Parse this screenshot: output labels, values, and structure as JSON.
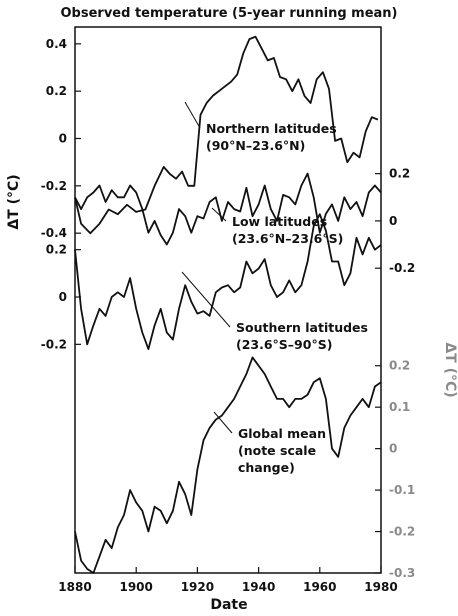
{
  "chart_data": {
    "type": "line",
    "title": "Observed temperature (5-year running mean)",
    "xlabel": "Date",
    "ylabel_left": "ΔT (°C)",
    "ylabel_right_gray": "ΔT (°C)",
    "xlim": [
      1880,
      1980
    ],
    "x_ticks": [
      "1880",
      "1900",
      "1920",
      "1940",
      "1960",
      "1980"
    ],
    "legend": "none (direct annotations)",
    "grid": false,
    "series": [
      {
        "name": "Northern latitudes",
        "axis": "left-upper",
        "color": "#111111",
        "y_ticks": [
          "0.4",
          "0.2",
          "0",
          "-0.2",
          "-0.4"
        ],
        "ylim": [
          -0.45,
          0.45
        ],
        "points": [
          [
            1880,
            -0.25
          ],
          [
            1882,
            -0.36
          ],
          [
            1885,
            -0.4
          ],
          [
            1888,
            -0.36
          ],
          [
            1891,
            -0.3
          ],
          [
            1894,
            -0.32
          ],
          [
            1897,
            -0.28
          ],
          [
            1900,
            -0.31
          ],
          [
            1903,
            -0.3
          ],
          [
            1906,
            -0.2
          ],
          [
            1909,
            -0.12
          ],
          [
            1911,
            -0.15
          ],
          [
            1913,
            -0.17
          ],
          [
            1915,
            -0.14
          ],
          [
            1917,
            -0.2
          ],
          [
            1919,
            -0.2
          ],
          [
            1921,
            0.1
          ],
          [
            1923,
            0.15
          ],
          [
            1925,
            0.18
          ],
          [
            1927,
            0.2
          ],
          [
            1929,
            0.22
          ],
          [
            1931,
            0.24
          ],
          [
            1933,
            0.27
          ],
          [
            1935,
            0.36
          ],
          [
            1937,
            0.42
          ],
          [
            1939,
            0.43
          ],
          [
            1941,
            0.38
          ],
          [
            1943,
            0.33
          ],
          [
            1945,
            0.34
          ],
          [
            1947,
            0.26
          ],
          [
            1949,
            0.25
          ],
          [
            1951,
            0.2
          ],
          [
            1953,
            0.25
          ],
          [
            1955,
            0.18
          ],
          [
            1957,
            0.15
          ],
          [
            1959,
            0.25
          ],
          [
            1961,
            0.28
          ],
          [
            1963,
            0.21
          ],
          [
            1965,
            -0.01
          ],
          [
            1967,
            0.0
          ],
          [
            1969,
            -0.1
          ],
          [
            1971,
            -0.06
          ],
          [
            1973,
            -0.08
          ],
          [
            1975,
            0.03
          ],
          [
            1977,
            0.09
          ],
          [
            1979,
            0.08
          ]
        ],
        "annotation": [
          "Northern latitudes",
          "(90°N–23.6°N)"
        ]
      },
      {
        "name": "Low latitudes",
        "axis": "right-upper",
        "color": "#111111",
        "y_ticks": [
          "0.2",
          "0",
          "-0.2"
        ],
        "ylim": [
          -0.25,
          0.3
        ],
        "points": [
          [
            1880,
            0.1
          ],
          [
            1882,
            0.05
          ],
          [
            1884,
            0.1
          ],
          [
            1886,
            0.12
          ],
          [
            1888,
            0.15
          ],
          [
            1890,
            0.08
          ],
          [
            1892,
            0.13
          ],
          [
            1894,
            0.1
          ],
          [
            1896,
            0.1
          ],
          [
            1898,
            0.15
          ],
          [
            1900,
            0.12
          ],
          [
            1902,
            0.05
          ],
          [
            1904,
            -0.05
          ],
          [
            1906,
            0.0
          ],
          [
            1908,
            -0.06
          ],
          [
            1910,
            -0.1
          ],
          [
            1912,
            -0.05
          ],
          [
            1914,
            0.05
          ],
          [
            1916,
            0.02
          ],
          [
            1918,
            -0.05
          ],
          [
            1920,
            0.02
          ],
          [
            1922,
            0.01
          ],
          [
            1924,
            0.08
          ],
          [
            1926,
            0.1
          ],
          [
            1928,
            0.0
          ],
          [
            1930,
            0.08
          ],
          [
            1932,
            0.05
          ],
          [
            1934,
            0.04
          ],
          [
            1936,
            0.14
          ],
          [
            1938,
            0.02
          ],
          [
            1940,
            0.07
          ],
          [
            1942,
            0.15
          ],
          [
            1944,
            0.05
          ],
          [
            1946,
            0.0
          ],
          [
            1948,
            0.11
          ],
          [
            1950,
            0.1
          ],
          [
            1952,
            0.07
          ],
          [
            1954,
            0.15
          ],
          [
            1956,
            0.2
          ],
          [
            1958,
            0.1
          ],
          [
            1960,
            -0.05
          ],
          [
            1962,
            0.03
          ],
          [
            1964,
            0.07
          ],
          [
            1966,
            0.0
          ],
          [
            1968,
            0.1
          ],
          [
            1970,
            0.05
          ],
          [
            1972,
            0.08
          ],
          [
            1974,
            0.02
          ],
          [
            1976,
            0.12
          ],
          [
            1978,
            0.15
          ],
          [
            1980,
            0.12
          ]
        ],
        "annotation": [
          "Low latitudes",
          "(23.6°N–23.6°S)"
        ]
      },
      {
        "name": "Southern latitudes",
        "axis": "left-middle",
        "color": "#111111",
        "y_ticks": [
          "0.2",
          "0",
          "-0.2"
        ],
        "ylim": [
          -0.3,
          0.3
        ],
        "points": [
          [
            1880,
            0.2
          ],
          [
            1882,
            -0.05
          ],
          [
            1884,
            -0.2
          ],
          [
            1886,
            -0.12
          ],
          [
            1888,
            -0.05
          ],
          [
            1890,
            -0.08
          ],
          [
            1892,
            0.0
          ],
          [
            1894,
            0.02
          ],
          [
            1896,
            0.0
          ],
          [
            1898,
            0.08
          ],
          [
            1900,
            -0.05
          ],
          [
            1902,
            -0.15
          ],
          [
            1904,
            -0.22
          ],
          [
            1906,
            -0.12
          ],
          [
            1908,
            -0.05
          ],
          [
            1910,
            -0.15
          ],
          [
            1912,
            -0.18
          ],
          [
            1914,
            -0.05
          ],
          [
            1916,
            0.05
          ],
          [
            1918,
            -0.02
          ],
          [
            1920,
            -0.07
          ],
          [
            1922,
            -0.06
          ],
          [
            1924,
            -0.08
          ],
          [
            1926,
            0.02
          ],
          [
            1928,
            0.04
          ],
          [
            1930,
            0.05
          ],
          [
            1932,
            0.02
          ],
          [
            1934,
            0.04
          ],
          [
            1936,
            0.15
          ],
          [
            1938,
            0.1
          ],
          [
            1940,
            0.12
          ],
          [
            1942,
            0.16
          ],
          [
            1944,
            0.05
          ],
          [
            1946,
            0.0
          ],
          [
            1948,
            0.02
          ],
          [
            1950,
            0.07
          ],
          [
            1952,
            0.02
          ],
          [
            1954,
            0.05
          ],
          [
            1956,
            0.15
          ],
          [
            1958,
            0.3
          ],
          [
            1960,
            0.35
          ],
          [
            1962,
            0.28
          ],
          [
            1964,
            0.15
          ],
          [
            1966,
            0.15
          ],
          [
            1968,
            0.05
          ],
          [
            1970,
            0.1
          ],
          [
            1972,
            0.25
          ],
          [
            1974,
            0.18
          ],
          [
            1976,
            0.25
          ],
          [
            1978,
            0.2
          ],
          [
            1980,
            0.22
          ]
        ],
        "annotation": [
          "Southern latitudes",
          "(23.6°S–90°S)"
        ]
      },
      {
        "name": "Global mean",
        "axis": "right-lower",
        "color": "#111111",
        "y_ticks": [
          "0.2",
          "0.1",
          "0",
          "-0.1",
          "-0.2",
          "-0.3"
        ],
        "ylim": [
          -0.3,
          0.25
        ],
        "points": [
          [
            1880,
            -0.2
          ],
          [
            1882,
            -0.27
          ],
          [
            1884,
            -0.29
          ],
          [
            1886,
            -0.3
          ],
          [
            1888,
            -0.26
          ],
          [
            1890,
            -0.22
          ],
          [
            1892,
            -0.24
          ],
          [
            1894,
            -0.19
          ],
          [
            1896,
            -0.16
          ],
          [
            1898,
            -0.1
          ],
          [
            1900,
            -0.13
          ],
          [
            1902,
            -0.15
          ],
          [
            1904,
            -0.2
          ],
          [
            1906,
            -0.14
          ],
          [
            1908,
            -0.15
          ],
          [
            1910,
            -0.18
          ],
          [
            1912,
            -0.15
          ],
          [
            1914,
            -0.08
          ],
          [
            1916,
            -0.11
          ],
          [
            1918,
            -0.16
          ],
          [
            1920,
            -0.05
          ],
          [
            1922,
            0.02
          ],
          [
            1924,
            0.05
          ],
          [
            1926,
            0.07
          ],
          [
            1928,
            0.08
          ],
          [
            1930,
            0.1
          ],
          [
            1932,
            0.12
          ],
          [
            1934,
            0.15
          ],
          [
            1936,
            0.18
          ],
          [
            1938,
            0.22
          ],
          [
            1940,
            0.2
          ],
          [
            1942,
            0.18
          ],
          [
            1944,
            0.15
          ],
          [
            1946,
            0.12
          ],
          [
            1948,
            0.12
          ],
          [
            1950,
            0.1
          ],
          [
            1952,
            0.12
          ],
          [
            1954,
            0.12
          ],
          [
            1956,
            0.13
          ],
          [
            1958,
            0.16
          ],
          [
            1960,
            0.17
          ],
          [
            1962,
            0.12
          ],
          [
            1964,
            0.0
          ],
          [
            1966,
            -0.02
          ],
          [
            1968,
            0.05
          ],
          [
            1970,
            0.08
          ],
          [
            1972,
            0.1
          ],
          [
            1974,
            0.12
          ],
          [
            1976,
            0.1
          ],
          [
            1978,
            0.15
          ],
          [
            1980,
            0.16
          ]
        ],
        "annotation": [
          "Global mean",
          "(note scale",
          "change)"
        ]
      }
    ]
  }
}
